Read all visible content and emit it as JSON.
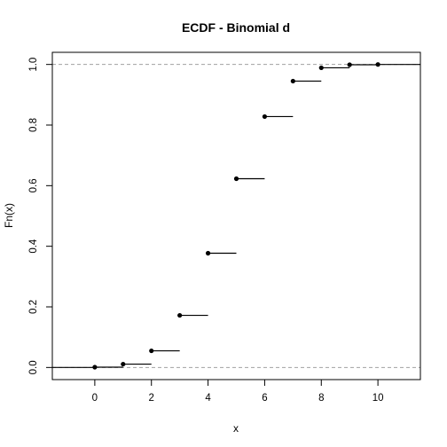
{
  "chart_data": {
    "type": "step",
    "title": "ECDF - Binomial d",
    "xlabel": "x",
    "ylabel": "Fn(x)",
    "xlim": [
      -1.5,
      11.5
    ],
    "ylim": [
      -0.04,
      1.04
    ],
    "xticks": [
      0,
      2,
      4,
      6,
      8,
      10
    ],
    "xtick_labels": [
      "0",
      "2",
      "4",
      "6",
      "8",
      "10"
    ],
    "yticks": [
      0.0,
      0.2,
      0.4,
      0.6,
      0.8,
      1.0
    ],
    "ytick_labels": [
      "0.0",
      "0.2",
      "0.4",
      "0.6",
      "0.8",
      "1.0"
    ],
    "points": [
      {
        "x": 0,
        "y": 0.001
      },
      {
        "x": 1,
        "y": 0.011
      },
      {
        "x": 2,
        "y": 0.055
      },
      {
        "x": 3,
        "y": 0.172
      },
      {
        "x": 4,
        "y": 0.377
      },
      {
        "x": 5,
        "y": 0.623
      },
      {
        "x": 6,
        "y": 0.828
      },
      {
        "x": 7,
        "y": 0.945
      },
      {
        "x": 8,
        "y": 0.989
      },
      {
        "x": 9,
        "y": 0.999
      },
      {
        "x": 10,
        "y": 1.0
      }
    ],
    "reference_lines": [
      0,
      1
    ],
    "line_color": "#000000",
    "reference_line_color": "#a0a0a0"
  }
}
